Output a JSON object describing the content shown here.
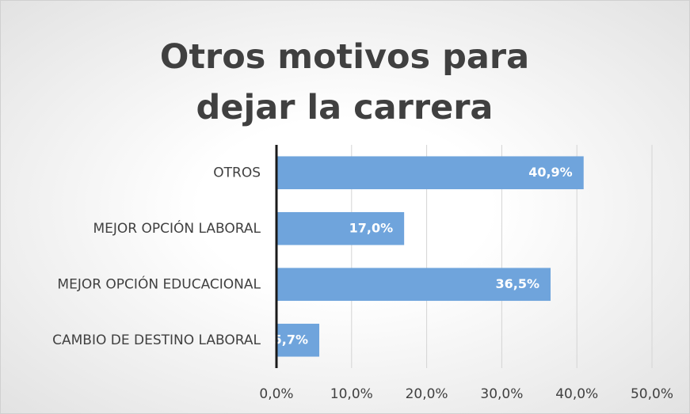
{
  "chart_data": {
    "type": "bar",
    "orientation": "horizontal",
    "title": "Otros motivos para dejar la carrera",
    "categories": [
      "OTROS",
      "MEJOR OPCIÓN LABORAL",
      "MEJOR OPCIÓN EDUCACIONAL",
      "CAMBIO DE DESTINO LABORAL"
    ],
    "values": [
      40.9,
      17.0,
      36.5,
      5.7
    ],
    "value_labels": [
      "40,9%",
      "17,0%",
      "36,5%",
      "5,7%"
    ],
    "color": "#6fa4dc",
    "xlim": [
      0,
      50
    ],
    "xticks": [
      {
        "value": 0,
        "label": "0,0%"
      },
      {
        "value": 10,
        "label": "10,0%"
      },
      {
        "value": 20,
        "label": "20,0%"
      },
      {
        "value": 30,
        "label": "30,0%"
      },
      {
        "value": 40,
        "label": "40,0%"
      },
      {
        "value": 50,
        "label": "50,0%"
      }
    ],
    "grid": true
  }
}
